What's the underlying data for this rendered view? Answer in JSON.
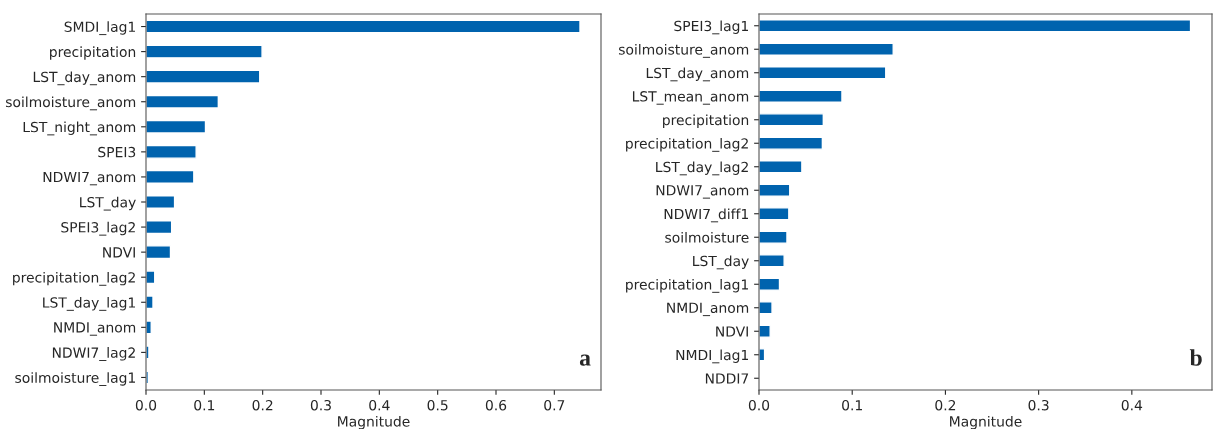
{
  "chart_data": [
    {
      "type": "bar",
      "orientation": "horizontal",
      "xlabel": "Magnitude",
      "color": "#0063ae",
      "grid": false,
      "annotations": [
        "a"
      ],
      "categories": [
        "SMDI_lag1",
        "precipitation",
        "LST_day_anom",
        "soilmoisture_anom",
        "LST_night_anom",
        "SPEI3",
        "NDWI7_anom",
        "LST_day",
        "SPEI3_lag2",
        "NDVI",
        "precipitation_lag2",
        "LST_day_lag1",
        "NMDI_anom",
        "NDWI7_lag2",
        "soilmoisture_lag1"
      ],
      "values": [
        0.744,
        0.199,
        0.195,
        0.124,
        0.102,
        0.086,
        0.082,
        0.049,
        0.044,
        0.042,
        0.015,
        0.012,
        0.009,
        0.005,
        0.004
      ],
      "xlim": [
        0,
        0.78
      ],
      "xticks": [
        {
          "value": 0,
          "label": "0.0"
        },
        0.1,
        0.2,
        0.3,
        0.4,
        0.5,
        0.6,
        0.7
      ]
    },
    {
      "type": "bar",
      "orientation": "horizontal",
      "xlabel": "Magnitude",
      "color": "#0063ae",
      "grid": false,
      "annotations": [
        "b"
      ],
      "categories": [
        "SPEI3_lag1",
        "soilmoisture_anom",
        "LST_day_anom",
        "LST_mean_anom",
        "precipitation",
        "precipitation_lag2",
        "LST_day_lag2",
        "NDWI7_anom",
        "NDWI7_diff1",
        "soilmoisture",
        "LST_day",
        "precipitation_lag1",
        "NMDI_anom",
        "NDVI",
        "NMDI_lag1",
        "NDDI7"
      ],
      "values": [
        0.463,
        0.144,
        0.136,
        0.089,
        0.069,
        0.068,
        0.046,
        0.033,
        0.032,
        0.03,
        0.027,
        0.022,
        0.014,
        0.012,
        0.006,
        null
      ],
      "xlim": [
        0,
        0.486
      ],
      "xticks": [
        {
          "value": 0,
          "label": "0.0"
        },
        0.1,
        0.2,
        0.3,
        0.4
      ]
    }
  ]
}
